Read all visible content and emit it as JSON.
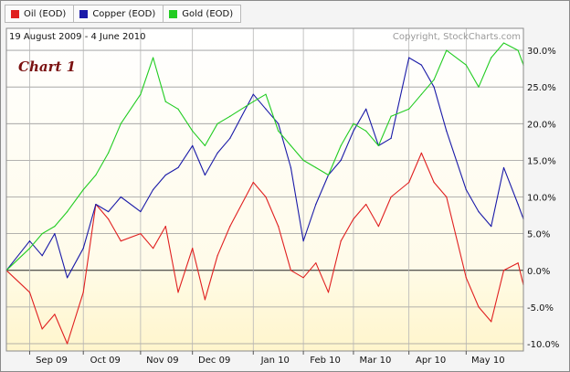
{
  "legend": [
    {
      "label": "Oil (EOD)",
      "color": "#e02020"
    },
    {
      "label": "Copper (EOD)",
      "color": "#1a1aa8"
    },
    {
      "label": "Gold (EOD)",
      "color": "#22cc22"
    }
  ],
  "header": {
    "date_range": "19 August 2009 - 4 June 2010",
    "copyright": "Copyright, StockCharts.com",
    "chart_label": "Chart 1"
  },
  "chart_data": {
    "type": "line",
    "x": [
      "2009-08-19",
      "2009-09-01",
      "2009-09-08",
      "2009-09-15",
      "2009-09-22",
      "2009-10-01",
      "2009-10-08",
      "2009-10-15",
      "2009-10-22",
      "2009-11-02",
      "2009-11-09",
      "2009-11-16",
      "2009-11-23",
      "2009-12-01",
      "2009-12-08",
      "2009-12-15",
      "2009-12-22",
      "2010-01-04",
      "2010-01-11",
      "2010-01-18",
      "2010-01-25",
      "2010-02-01",
      "2010-02-08",
      "2010-02-15",
      "2010-02-22",
      "2010-03-01",
      "2010-03-08",
      "2010-03-15",
      "2010-03-22",
      "2010-04-01",
      "2010-04-08",
      "2010-04-15",
      "2010-04-22",
      "2010-05-03",
      "2010-05-10",
      "2010-05-17",
      "2010-05-24",
      "2010-06-01",
      "2010-06-04"
    ],
    "series": [
      {
        "name": "Oil (EOD)",
        "color": "#e02020",
        "values": [
          0,
          -3,
          -8,
          -6,
          -10,
          -3,
          9,
          7,
          4,
          5,
          3,
          6,
          -3,
          3,
          -4,
          2,
          6,
          12,
          10,
          6,
          0,
          -1,
          1,
          -3,
          4,
          7,
          9,
          6,
          10,
          12,
          16,
          12,
          10,
          -1,
          -5,
          -7,
          0,
          1,
          -2
        ]
      },
      {
        "name": "Copper (EOD)",
        "color": "#1a1aa8",
        "values": [
          0,
          4,
          2,
          5,
          -1,
          3,
          9,
          8,
          10,
          8,
          11,
          13,
          14,
          17,
          13,
          16,
          18,
          24,
          22,
          20,
          14,
          4,
          9,
          13,
          15,
          19,
          22,
          17,
          18,
          29,
          28,
          25,
          19,
          11,
          8,
          6,
          14,
          9,
          7
        ]
      },
      {
        "name": "Gold (EOD)",
        "color": "#22cc22",
        "values": [
          0,
          3,
          5,
          6,
          8,
          11,
          13,
          16,
          20,
          24,
          29,
          23,
          22,
          19,
          17,
          20,
          21,
          23,
          24,
          19,
          17,
          15,
          14,
          13,
          17,
          20,
          19,
          17,
          21,
          22,
          24,
          26,
          30,
          28,
          25,
          29,
          31,
          30,
          28
        ]
      }
    ],
    "yticks": [
      "30.0%",
      "25.0%",
      "20.0%",
      "15.0%",
      "10.0%",
      "5.0%",
      "0.0%",
      "-5.0%",
      "-10.0%"
    ],
    "ytick_values": [
      30,
      25,
      20,
      15,
      10,
      5,
      0,
      -5,
      -10
    ],
    "xticks": [
      {
        "label": "Sep 09",
        "x": "2009-09-01"
      },
      {
        "label": "Oct 09",
        "x": "2009-10-01"
      },
      {
        "label": "Nov 09",
        "x": "2009-11-02"
      },
      {
        "label": "Dec 09",
        "x": "2009-12-01"
      },
      {
        "label": "Jan 10",
        "x": "2010-01-04"
      },
      {
        "label": "Feb 10",
        "x": "2010-02-01"
      },
      {
        "label": "Mar 10",
        "x": "2010-03-01"
      },
      {
        "label": "Apr 10",
        "x": "2010-04-01"
      },
      {
        "label": "May 10",
        "x": "2010-05-03"
      }
    ],
    "xlim": [
      "2009-08-19",
      "2010-06-04"
    ],
    "ylim": [
      -11,
      33
    ],
    "grid": true,
    "legend_position": "top-left"
  }
}
